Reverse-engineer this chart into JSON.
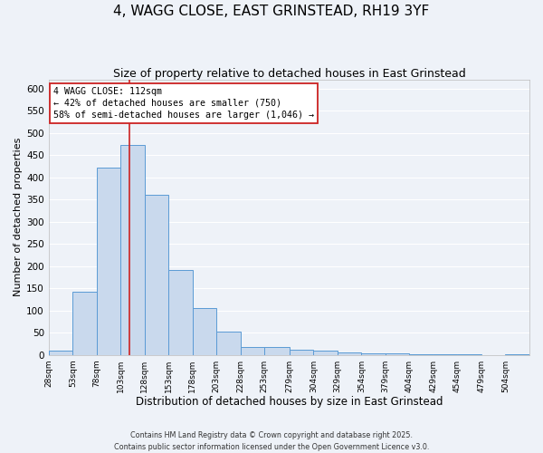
{
  "title": "4, WAGG CLOSE, EAST GRINSTEAD, RH19 3YF",
  "subtitle": "Size of property relative to detached houses in East Grinstead",
  "xlabel": "Distribution of detached houses by size in East Grinstead",
  "ylabel": "Number of detached properties",
  "bin_edges": [
    28,
    53,
    78,
    103,
    128,
    153,
    178,
    203,
    228,
    253,
    279,
    304,
    329,
    354,
    379,
    404,
    429,
    454,
    479,
    504,
    529
  ],
  "bar_heights": [
    10,
    143,
    422,
    473,
    360,
    192,
    106,
    53,
    18,
    18,
    12,
    10,
    5,
    3,
    3,
    2,
    1,
    1,
    0,
    1
  ],
  "bar_facecolor": "#c9d9ed",
  "bar_edgecolor": "#5b9bd5",
  "vline_x": 112,
  "vline_color": "#cc2222",
  "ylim": [
    0,
    620
  ],
  "yticks": [
    0,
    50,
    100,
    150,
    200,
    250,
    300,
    350,
    400,
    450,
    500,
    550,
    600
  ],
  "annotation_line1": "4 WAGG CLOSE: 112sqm",
  "annotation_line2": "← 42% of detached houses are smaller (750)",
  "annotation_line3": "58% of semi-detached houses are larger (1,046) →",
  "background_color": "#eef2f8",
  "grid_color": "#ffffff",
  "footer_line1": "Contains HM Land Registry data © Crown copyright and database right 2025.",
  "footer_line2": "Contains public sector information licensed under the Open Government Licence v3.0.",
  "title_fontsize": 11,
  "subtitle_fontsize": 9,
  "xlabel_fontsize": 8.5,
  "ylabel_fontsize": 8
}
